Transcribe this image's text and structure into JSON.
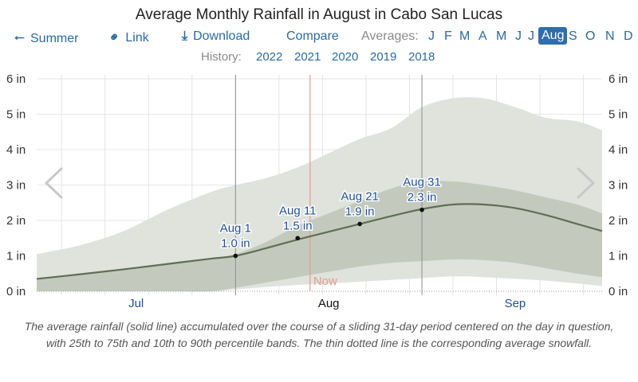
{
  "header": {
    "title": "Average Monthly Rainfall in August in Cabo San Lucas",
    "nav": {
      "back_label": "Summer",
      "link_label": "Link",
      "download_label": "Download",
      "compare_label": "Compare",
      "averages_label": "Averages:",
      "months": [
        "J",
        "F",
        "M",
        "A",
        "M",
        "J",
        "J",
        "Aug",
        "S",
        "O",
        "N",
        "D"
      ],
      "active_month": "Aug"
    },
    "history": {
      "label": "History:",
      "years": [
        "2022",
        "2021",
        "2020",
        "2019",
        "2018"
      ]
    }
  },
  "colors": {
    "link": "#2a6aa8",
    "active_month_bg": "#2f6db0",
    "band_outer": "#dfe3dc",
    "band_inner": "#c3cabd",
    "mean_line": "#5f6e55",
    "now_line": "#e69a90",
    "annotation": "#1f4fa0"
  },
  "chart_data": {
    "type": "area",
    "title": "Average Monthly Rainfall in August in Cabo San Lucas",
    "xlabel": "",
    "ylabel": "",
    "y_unit": "in",
    "ylim": [
      0,
      6
    ],
    "yticks": [
      "0 in",
      "1 in",
      "2 in",
      "3 in",
      "4 in",
      "5 in",
      "6 in"
    ],
    "x_domain_days": [
      -32,
      59
    ],
    "x_note": "day offset relative to Aug 1",
    "month_labels": [
      {
        "label": "Jul",
        "day": -16,
        "highlight": false
      },
      {
        "label": "Aug",
        "day": 15,
        "highlight": true
      },
      {
        "label": "Sep",
        "day": 45,
        "highlight": false
      }
    ],
    "gridlines": true,
    "now_label": "Now",
    "now_day": 12,
    "marker_days": [
      0,
      30
    ],
    "x": [
      -32,
      -25,
      -18,
      -11,
      -4,
      0,
      5,
      10,
      15,
      20,
      25,
      30,
      35,
      40,
      45,
      50,
      55,
      59
    ],
    "series": [
      {
        "name": "10th percentile",
        "values": [
          0.0,
          0.0,
          0.0,
          0.0,
          0.0,
          0.05,
          0.12,
          0.18,
          0.22,
          0.27,
          0.32,
          0.37,
          0.42,
          0.4,
          0.35,
          0.3,
          0.22,
          0.15
        ]
      },
      {
        "name": "25th percentile",
        "values": [
          0.0,
          0.0,
          0.0,
          0.0,
          0.0,
          0.1,
          0.25,
          0.4,
          0.55,
          0.7,
          0.8,
          0.85,
          0.9,
          0.88,
          0.8,
          0.65,
          0.5,
          0.4
        ]
      },
      {
        "name": "average",
        "values": [
          0.35,
          0.48,
          0.62,
          0.77,
          0.92,
          1.0,
          1.22,
          1.46,
          1.68,
          1.9,
          2.12,
          2.32,
          2.45,
          2.45,
          2.35,
          2.15,
          1.9,
          1.7
        ]
      },
      {
        "name": "75th percentile",
        "values": [
          0.35,
          0.48,
          0.62,
          0.77,
          0.92,
          1.05,
          1.4,
          1.85,
          2.2,
          2.55,
          2.9,
          3.1,
          3.1,
          3.0,
          2.85,
          2.65,
          2.45,
          2.2
        ]
      },
      {
        "name": "90th percentile",
        "values": [
          1.05,
          1.3,
          1.7,
          2.3,
          2.8,
          3.0,
          3.2,
          3.5,
          3.9,
          4.3,
          4.6,
          5.2,
          5.45,
          5.45,
          5.2,
          4.9,
          4.8,
          4.55
        ]
      }
    ],
    "annotations": [
      {
        "date": "Aug 1",
        "day": 0,
        "value": 1.0,
        "value_label": "1.0 in"
      },
      {
        "date": "Aug 11",
        "day": 10,
        "value": 1.5,
        "value_label": "1.5 in"
      },
      {
        "date": "Aug 21",
        "day": 20,
        "value": 1.9,
        "value_label": "1.9 in"
      },
      {
        "date": "Aug 31",
        "day": 30,
        "value": 2.3,
        "value_label": "2.3 in"
      }
    ]
  },
  "caption": "The average rainfall (solid line) accumulated over the course of a sliding 31-day period centered on the day in question, with 25th to 75th and 10th to 90th percentile bands. The thin dotted line is the corresponding average snowfall."
}
